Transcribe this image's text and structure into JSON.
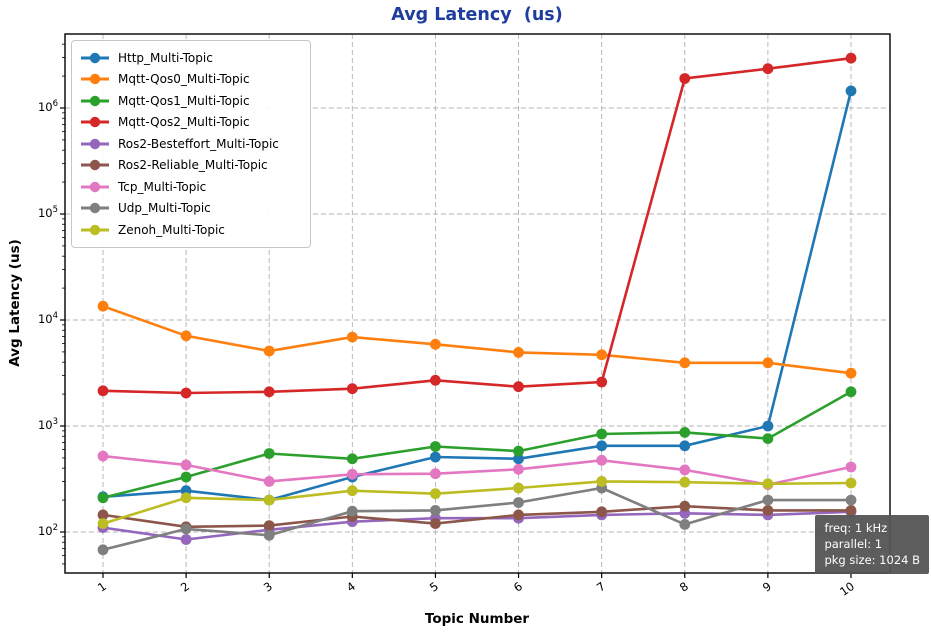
{
  "chart_data": {
    "type": "line",
    "title": "Avg Latency  (us)",
    "xlabel": "Topic Number",
    "ylabel": "Avg Latency (us)",
    "yscale": "log",
    "ytick_exponents": [
      2,
      3,
      4,
      5,
      6
    ],
    "grid": true,
    "legend_position": "upper left",
    "x": [
      "1",
      "2",
      "3",
      "4",
      "5",
      "6",
      "7",
      "8",
      "9",
      "10"
    ],
    "series": [
      {
        "name": "Http_Multi-Topic",
        "color": "#1f77b4",
        "values": [
          215,
          245,
          200,
          330,
          510,
          490,
          650,
          650,
          1000,
          1450000
        ]
      },
      {
        "name": "Mqtt-Qos0_Multi-Topic",
        "color": "#ff7f0e",
        "values": [
          13500,
          7100,
          5100,
          6900,
          5900,
          4950,
          4700,
          3950,
          3950,
          3150
        ]
      },
      {
        "name": "Mqtt-Qos1_Multi-Topic",
        "color": "#2ca02c",
        "values": [
          210,
          330,
          550,
          490,
          640,
          580,
          840,
          870,
          760,
          2100
        ]
      },
      {
        "name": "Mqtt-Qos2_Multi-Topic",
        "color": "#d62728",
        "values": [
          2150,
          2050,
          2100,
          2250,
          2700,
          2350,
          2600,
          1900000,
          2350000,
          2950000
        ]
      },
      {
        "name": "Ros2-Besteffort_Multi-Topic",
        "color": "#9467bd",
        "values": [
          110,
          85,
          105,
          125,
          135,
          135,
          145,
          150,
          145,
          155
        ]
      },
      {
        "name": "Ros2-Reliable_Multi-Topic",
        "color": "#8c564b",
        "values": [
          145,
          112,
          115,
          140,
          120,
          145,
          155,
          175,
          160,
          160
        ]
      },
      {
        "name": "Tcp_Multi-Topic",
        "color": "#e377c2",
        "values": [
          520,
          430,
          300,
          350,
          355,
          390,
          475,
          385,
          280,
          410
        ]
      },
      {
        "name": "Udp_Multi-Topic",
        "color": "#7f7f7f",
        "values": [
          68,
          107,
          93,
          157,
          160,
          190,
          260,
          118,
          200,
          200
        ]
      },
      {
        "name": "Zenoh_Multi-Topic",
        "color": "#bcbd22",
        "values": [
          120,
          210,
          200,
          245,
          230,
          260,
          300,
          295,
          285,
          290
        ]
      }
    ]
  },
  "title_color": "#1f3d9e",
  "annotation": {
    "lines": [
      "freq: 1 kHz",
      "parallel: 1",
      "pkg size: 1024 B"
    ]
  }
}
